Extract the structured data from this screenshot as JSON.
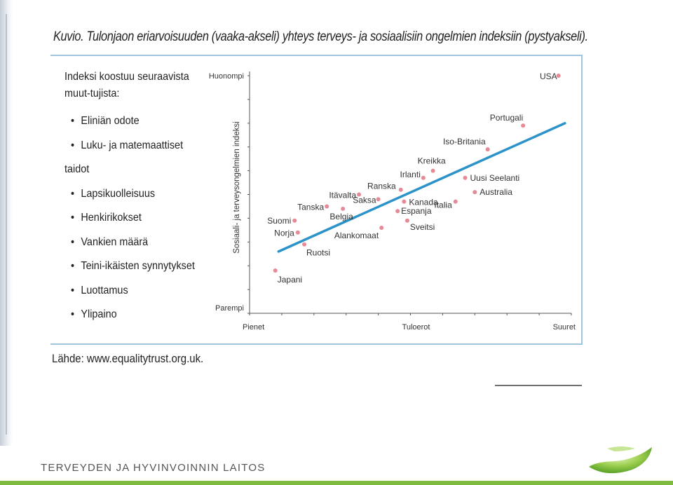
{
  "figure": {
    "title": "Kuvio. Tulonjaon eriarvoisuuden (vaaka-akseli) yhteys terveys- ja sosiaalisiin ongelmien indeksiin (pystyakseli).",
    "index_intro": "Indeksi koostuu seuraavista muut-tujista:",
    "index_items": [
      "Eliniän odote",
      "Luku- ja matemaattiset",
      "taidot",
      "Lapsikuolleisuus",
      "Henkirikokset",
      "Vankien määrä",
      "Teini-ikäisten synnytykset",
      "Luottamus",
      "Ylipaino"
    ],
    "source": "Lähde: www.equalitytrust.org.uk."
  },
  "footer": {
    "organization": "TERVEYDEN JA HYVINVOINNIN LAITOS"
  },
  "colors": {
    "trend_line": "#2b93c8",
    "points": "#e58a96",
    "frame": "#9fc6dc",
    "footer_bar": "#7fbb3e"
  },
  "chart_data": {
    "type": "scatter",
    "xlabel": "Tuloerot",
    "ylabel": "Sosiaali- ja terveysongelmien indeksi",
    "x_tick_labels": [
      "Pienet",
      "Suuret"
    ],
    "y_tick_labels": [
      "Parempi",
      "Huonompi"
    ],
    "xlim": [
      0,
      1
    ],
    "ylim": [
      0,
      1
    ],
    "grid": false,
    "points": [
      {
        "name": "USA",
        "x": 0.96,
        "y": 1.0
      },
      {
        "name": "Portugali",
        "x": 0.85,
        "y": 0.79
      },
      {
        "name": "Iso-Britania",
        "x": 0.74,
        "y": 0.69
      },
      {
        "name": "Kreikka",
        "x": 0.57,
        "y": 0.6
      },
      {
        "name": "Irlanti",
        "x": 0.54,
        "y": 0.57
      },
      {
        "name": "Uusi Seelanti",
        "x": 0.67,
        "y": 0.57
      },
      {
        "name": "Australia",
        "x": 0.7,
        "y": 0.51
      },
      {
        "name": "Italia",
        "x": 0.64,
        "y": 0.47
      },
      {
        "name": "Ranska",
        "x": 0.47,
        "y": 0.52
      },
      {
        "name": "Kanada",
        "x": 0.48,
        "y": 0.47
      },
      {
        "name": "Espanja",
        "x": 0.46,
        "y": 0.43
      },
      {
        "name": "Sveitsi",
        "x": 0.49,
        "y": 0.39
      },
      {
        "name": "Saksa",
        "x": 0.4,
        "y": 0.48
      },
      {
        "name": "Itävalta",
        "x": 0.34,
        "y": 0.5
      },
      {
        "name": "Belgia",
        "x": 0.29,
        "y": 0.44
      },
      {
        "name": "Tanska",
        "x": 0.24,
        "y": 0.45
      },
      {
        "name": "Alankomaat",
        "x": 0.41,
        "y": 0.36
      },
      {
        "name": "Suomi",
        "x": 0.14,
        "y": 0.39
      },
      {
        "name": "Norja",
        "x": 0.15,
        "y": 0.34
      },
      {
        "name": "Ruotsi",
        "x": 0.17,
        "y": 0.29
      },
      {
        "name": "Japani",
        "x": 0.08,
        "y": 0.18
      }
    ],
    "trend_line": {
      "x": [
        0.09,
        0.98
      ],
      "y": [
        0.26,
        0.8
      ]
    }
  }
}
